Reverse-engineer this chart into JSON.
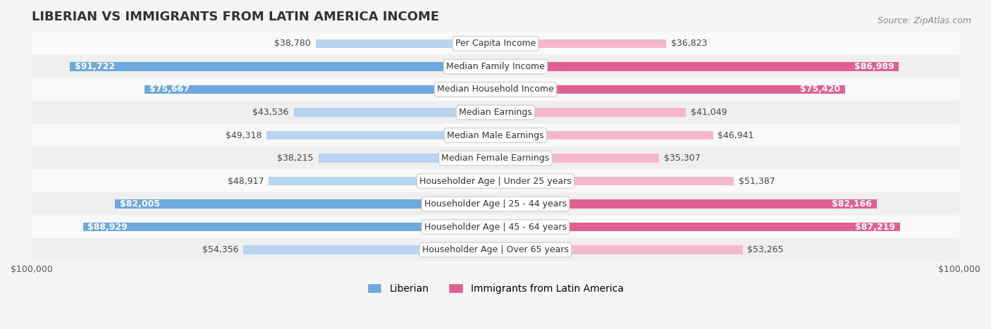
{
  "title": "LIBERIAN VS IMMIGRANTS FROM LATIN AMERICA INCOME",
  "source": "Source: ZipAtlas.com",
  "categories": [
    "Per Capita Income",
    "Median Family Income",
    "Median Household Income",
    "Median Earnings",
    "Median Male Earnings",
    "Median Female Earnings",
    "Householder Age | Under 25 years",
    "Householder Age | 25 - 44 years",
    "Householder Age | 45 - 64 years",
    "Householder Age | Over 65 years"
  ],
  "liberian_values": [
    38780,
    91722,
    75667,
    43536,
    49318,
    38215,
    48917,
    82005,
    88929,
    54356
  ],
  "immigrant_values": [
    36823,
    86989,
    75420,
    41049,
    46941,
    35307,
    51387,
    82166,
    87219,
    53265
  ],
  "liberian_labels": [
    "$38,780",
    "$91,722",
    "$75,667",
    "$43,536",
    "$49,318",
    "$38,215",
    "$48,917",
    "$82,005",
    "$88,929",
    "$54,356"
  ],
  "immigrant_labels": [
    "$36,823",
    "$86,989",
    "$75,420",
    "$41,049",
    "$46,941",
    "$35,307",
    "$51,387",
    "$82,166",
    "$87,219",
    "$53,265"
  ],
  "max_value": 100000,
  "liberian_color_full": "#6fa8dc",
  "liberian_color_light": "#b8d4f0",
  "immigrant_color_full": "#e06090",
  "immigrant_color_light": "#f4b8ce",
  "background_color": "#f5f5f5",
  "row_bg_light": "#f9f9f9",
  "row_bg_dark": "#efefef",
  "label_fontsize": 9,
  "title_fontsize": 13,
  "source_fontsize": 9,
  "legend_fontsize": 10,
  "full_bar_threshold": 70000
}
